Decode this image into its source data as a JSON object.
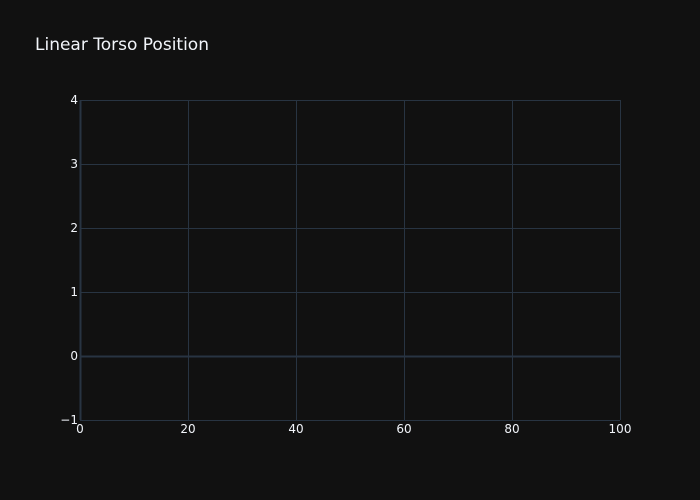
{
  "chart_data": {
    "type": "line",
    "title": "Linear Torso Position",
    "xlabel": "",
    "ylabel": "",
    "xlim": [
      0,
      100
    ],
    "ylim": [
      -1,
      4
    ],
    "x_ticks": [
      0,
      20,
      40,
      60,
      80,
      100
    ],
    "y_ticks": [
      -1,
      0,
      1,
      2,
      3,
      4
    ],
    "x_tick_labels": [
      "0",
      "20",
      "40",
      "60",
      "80",
      "100"
    ],
    "y_tick_labels": [
      "−1",
      "0",
      "1",
      "2",
      "3",
      "4"
    ],
    "series": [],
    "grid": true,
    "legend": "none"
  },
  "colors": {
    "background": "#111111",
    "grid": "#283442",
    "text": "#f2f5fa"
  }
}
